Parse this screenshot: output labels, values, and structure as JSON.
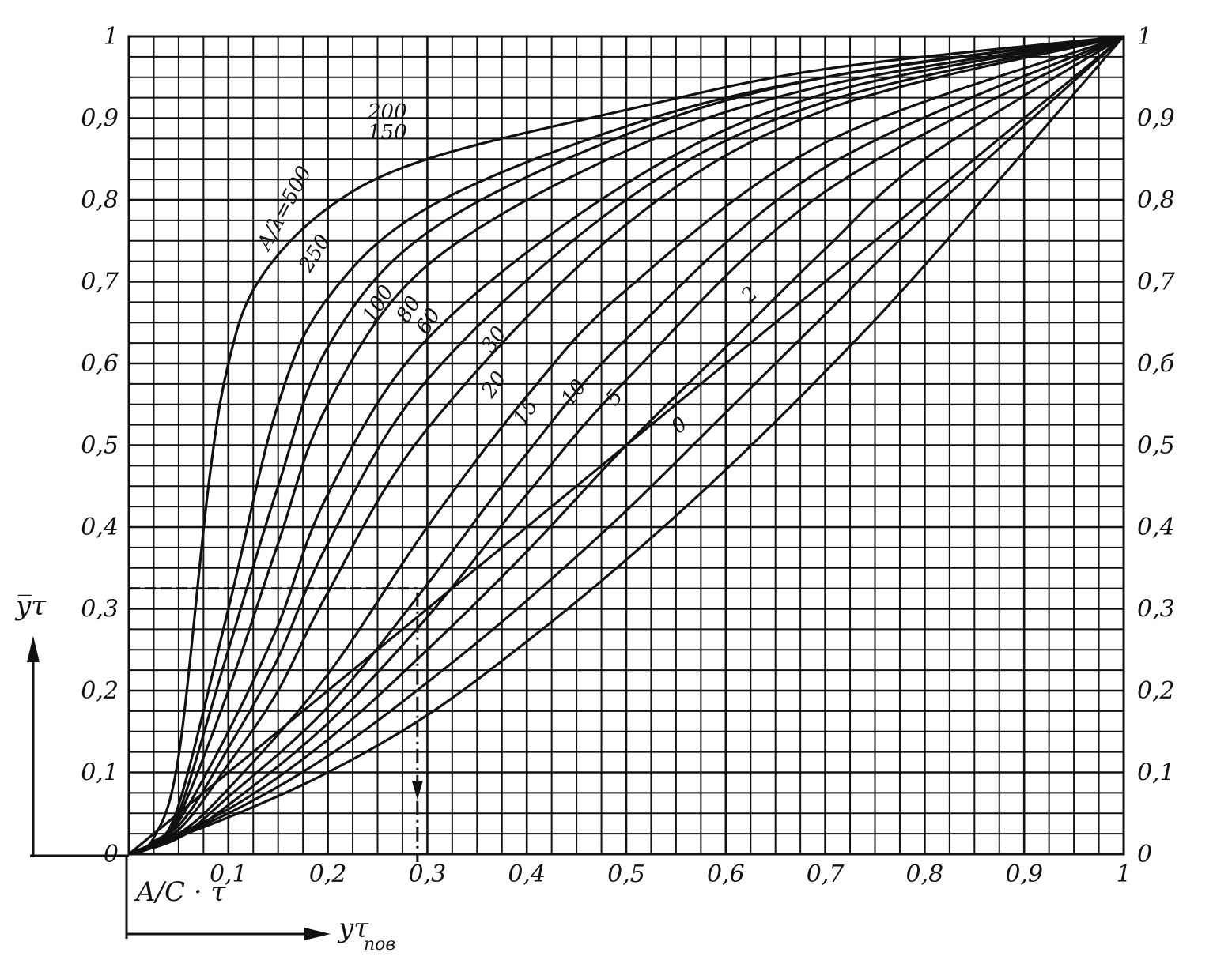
{
  "chart_data": {
    "type": "line",
    "x_tick_labels": [
      "0,1",
      "0,2",
      "0,3",
      "0,4",
      "0,5",
      "0,6",
      "0,7",
      "0,8",
      "0,9",
      "1"
    ],
    "y_tick_labels": [
      "0",
      "0,1",
      "0,2",
      "0,3",
      "0,4",
      "0,5",
      "0,6",
      "0,7",
      "0,8",
      "0,9",
      "1"
    ],
    "y_right_tick_labels": [
      "0",
      "0,1",
      "0,2",
      "0,3",
      "0,4",
      "0,5",
      "0,б",
      "0,7",
      "0,8",
      "0,9",
      "1"
    ],
    "xlim": [
      0,
      1
    ],
    "ylim": [
      0,
      1
    ],
    "grid": true,
    "grid_step": 0.025,
    "origin_label": "A/C · τ",
    "y_axis_label": "y̅τ",
    "x_axis_label": "yτ",
    "x_axis_label_sub": "пов",
    "series": [
      {
        "name": "A/λ=500",
        "values": [
          [
            0,
            0
          ],
          [
            0.025,
            0.02
          ],
          [
            0.05,
            0.12
          ],
          [
            0.08,
            0.45
          ],
          [
            0.1,
            0.6
          ],
          [
            0.13,
            0.7
          ],
          [
            0.2,
            0.79
          ],
          [
            0.3,
            0.85
          ],
          [
            0.5,
            0.91
          ],
          [
            0.7,
            0.96
          ],
          [
            1,
            1
          ]
        ]
      },
      {
        "name": "250",
        "values": [
          [
            0,
            0
          ],
          [
            0.025,
            0.015
          ],
          [
            0.05,
            0.06
          ],
          [
            0.1,
            0.3
          ],
          [
            0.15,
            0.55
          ],
          [
            0.2,
            0.68
          ],
          [
            0.3,
            0.79
          ],
          [
            0.5,
            0.89
          ],
          [
            0.7,
            0.95
          ],
          [
            1,
            1
          ]
        ]
      },
      {
        "name": "200",
        "values": [
          [
            0,
            0
          ],
          [
            0.025,
            0.012
          ],
          [
            0.05,
            0.05
          ],
          [
            0.1,
            0.25
          ],
          [
            0.15,
            0.45
          ],
          [
            0.2,
            0.62
          ],
          [
            0.3,
            0.76
          ],
          [
            0.5,
            0.88
          ],
          [
            0.7,
            0.95
          ],
          [
            1,
            1
          ]
        ]
      },
      {
        "name": "150",
        "values": [
          [
            0,
            0
          ],
          [
            0.025,
            0.01
          ],
          [
            0.05,
            0.045
          ],
          [
            0.1,
            0.2
          ],
          [
            0.15,
            0.38
          ],
          [
            0.2,
            0.55
          ],
          [
            0.3,
            0.72
          ],
          [
            0.5,
            0.86
          ],
          [
            0.7,
            0.94
          ],
          [
            1,
            1
          ]
        ]
      },
      {
        "name": "100",
        "values": [
          [
            0,
            0
          ],
          [
            0.025,
            0.01
          ],
          [
            0.05,
            0.04
          ],
          [
            0.1,
            0.15
          ],
          [
            0.15,
            0.28
          ],
          [
            0.2,
            0.44
          ],
          [
            0.3,
            0.63
          ],
          [
            0.5,
            0.82
          ],
          [
            0.7,
            0.93
          ],
          [
            1,
            1
          ]
        ]
      },
      {
        "name": "80",
        "values": [
          [
            0,
            0
          ],
          [
            0.05,
            0.035
          ],
          [
            0.1,
            0.13
          ],
          [
            0.15,
            0.24
          ],
          [
            0.2,
            0.38
          ],
          [
            0.3,
            0.58
          ],
          [
            0.5,
            0.8
          ],
          [
            0.7,
            0.92
          ],
          [
            1,
            1
          ]
        ]
      },
      {
        "name": "60",
        "values": [
          [
            0,
            0
          ],
          [
            0.05,
            0.03
          ],
          [
            0.1,
            0.11
          ],
          [
            0.15,
            0.2
          ],
          [
            0.2,
            0.32
          ],
          [
            0.3,
            0.52
          ],
          [
            0.5,
            0.77
          ],
          [
            0.7,
            0.91
          ],
          [
            1,
            1
          ]
        ]
      },
      {
        "name": "30",
        "values": [
          [
            0,
            0
          ],
          [
            0.05,
            0.025
          ],
          [
            0.1,
            0.08
          ],
          [
            0.2,
            0.22
          ],
          [
            0.3,
            0.4
          ],
          [
            0.4,
            0.56
          ],
          [
            0.5,
            0.69
          ],
          [
            0.7,
            0.87
          ],
          [
            1,
            1
          ]
        ]
      },
      {
        "name": "20",
        "values": [
          [
            0,
            0
          ],
          [
            0.05,
            0.02
          ],
          [
            0.1,
            0.07
          ],
          [
            0.2,
            0.18
          ],
          [
            0.3,
            0.33
          ],
          [
            0.4,
            0.49
          ],
          [
            0.5,
            0.63
          ],
          [
            0.7,
            0.84
          ],
          [
            1,
            1
          ]
        ]
      },
      {
        "name": "15",
        "values": [
          [
            0,
            0
          ],
          [
            0.05,
            0.02
          ],
          [
            0.1,
            0.06
          ],
          [
            0.2,
            0.16
          ],
          [
            0.3,
            0.29
          ],
          [
            0.4,
            0.44
          ],
          [
            0.5,
            0.58
          ],
          [
            0.7,
            0.81
          ],
          [
            1,
            1
          ]
        ]
      },
      {
        "name": "10",
        "values": [
          [
            0,
            0
          ],
          [
            0.1,
            0.055
          ],
          [
            0.2,
            0.14
          ],
          [
            0.3,
            0.25
          ],
          [
            0.4,
            0.37
          ],
          [
            0.5,
            0.5
          ],
          [
            0.6,
            0.62
          ],
          [
            0.7,
            0.74
          ],
          [
            0.8,
            0.85
          ],
          [
            1,
            1
          ]
        ]
      },
      {
        "name": "5",
        "values": [
          [
            0,
            0
          ],
          [
            0.1,
            0.05
          ],
          [
            0.2,
            0.12
          ],
          [
            0.3,
            0.21
          ],
          [
            0.4,
            0.31
          ],
          [
            0.5,
            0.42
          ],
          [
            0.6,
            0.54
          ],
          [
            0.7,
            0.66
          ],
          [
            0.8,
            0.78
          ],
          [
            1,
            1
          ]
        ]
      },
      {
        "name": "2",
        "values": [
          [
            0,
            0
          ],
          [
            0.1,
            0.045
          ],
          [
            0.2,
            0.1
          ],
          [
            0.3,
            0.17
          ],
          [
            0.4,
            0.26
          ],
          [
            0.5,
            0.36
          ],
          [
            0.6,
            0.47
          ],
          [
            0.7,
            0.59
          ],
          [
            0.8,
            0.72
          ],
          [
            1,
            1
          ]
        ]
      },
      {
        "name": "0",
        "values": [
          [
            0,
            0
          ],
          [
            1,
            1
          ]
        ]
      }
    ],
    "annotations": [
      {
        "text": "dashed reading line",
        "y": 0.325,
        "x_to": 0.29
      },
      {
        "text": "dash-dot arrow down",
        "x": 0.29,
        "y_from": 0.32,
        "y_to": 0.0
      }
    ]
  }
}
